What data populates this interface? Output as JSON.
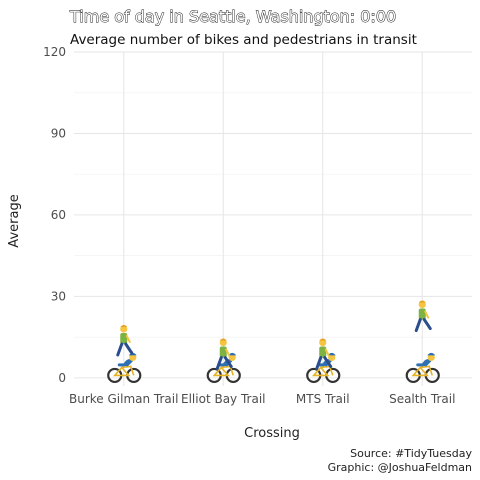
{
  "chart_data": {
    "type": "scatter",
    "title": "Time of day in Seattle, Washington: 0:00",
    "subtitle": "Average number of bikes and pedestrians in transit",
    "xlabel": "Crossing",
    "ylabel": "Average",
    "categories": [
      "Burke Gilman Trail",
      "Elliot Bay Trail",
      "MTS Trail",
      "Sealth Trail"
    ],
    "ylim": [
      -3,
      120
    ],
    "yticks": [
      0,
      30,
      60,
      90,
      120
    ],
    "grid": true,
    "series": [
      {
        "icon": "bike-icon",
        "values": [
          2,
          2,
          2,
          2
        ]
      },
      {
        "icon": "pedestrian-icon",
        "values": [
          11,
          6,
          6,
          20
        ]
      }
    ]
  },
  "caption": {
    "source": "Source: #TidyTuesday",
    "graphic": "Graphic: @JoshuaFeldman"
  }
}
